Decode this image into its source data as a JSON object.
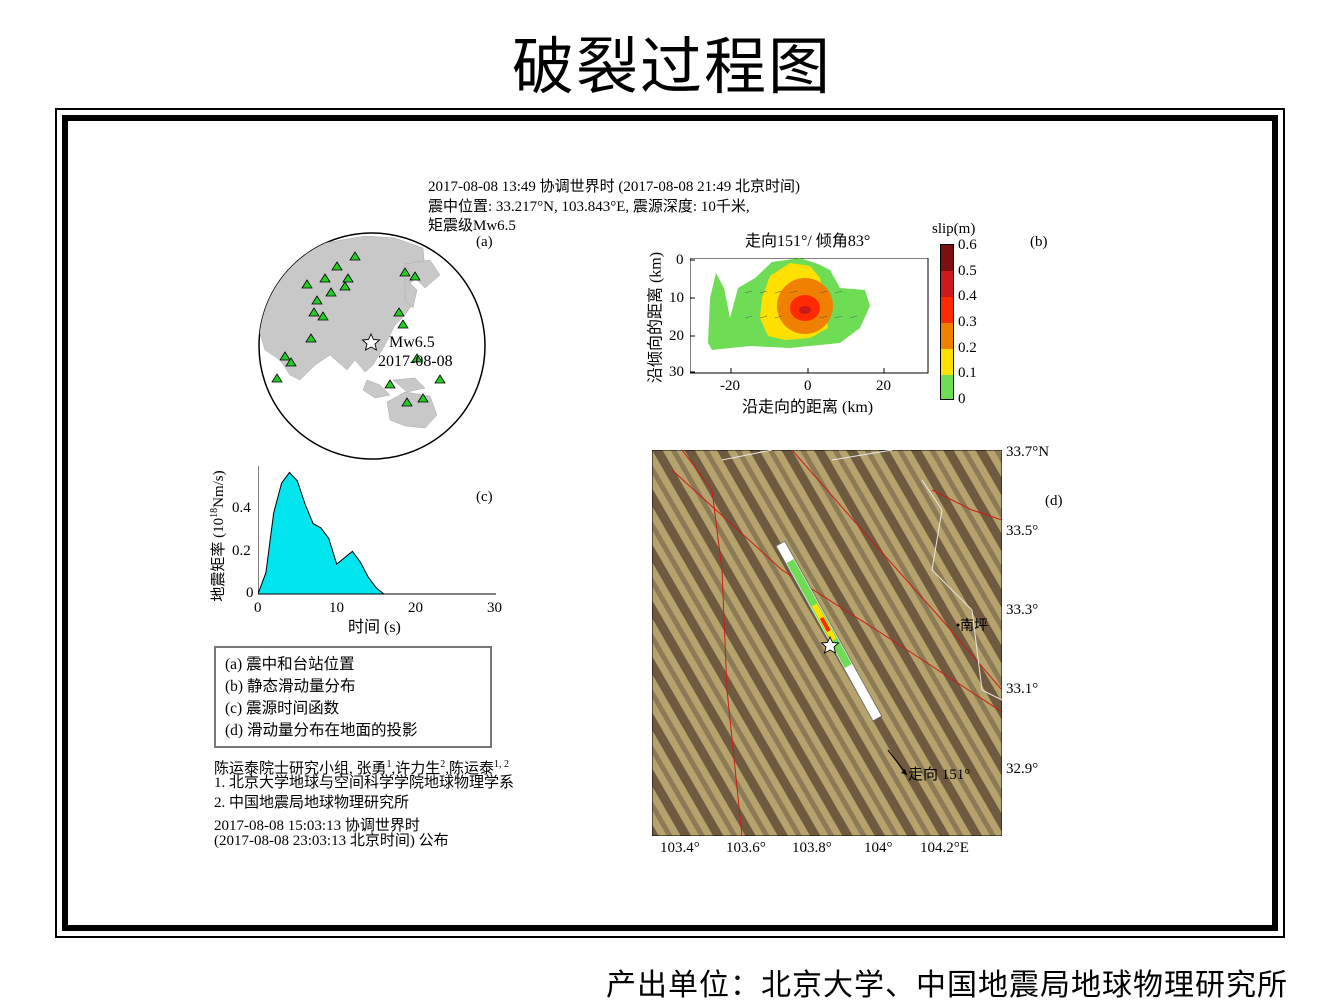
{
  "title": "破裂过程图",
  "header": {
    "line1": "2017-08-08 13:49 协调世界时 (2017-08-08 21:49 北京时间)",
    "line2": "震中位置: 33.217°N, 103.843°E, 震源深度: 10千米,",
    "line3": "矩震级Mw6.5"
  },
  "panel_a": {
    "label": "(a)",
    "event_mag": "Mw6.5",
    "event_date": "2017-08-08",
    "colors": {
      "ocean": "#ffffff",
      "land": "#c8c8c8",
      "station": "#22cc22"
    }
  },
  "panel_b": {
    "label": "(b)",
    "title": "走向151°/ 倾角83°",
    "xlabel": "沿走向的距离 (km)",
    "ylabel": "沿倾向的距离 (km)",
    "x_ticks": [
      "-20",
      "0",
      "20"
    ],
    "y_ticks": [
      "0",
      "10",
      "20",
      "30"
    ],
    "colorbar_title": "slip(m)",
    "colorbar_ticks": [
      "0.6",
      "0.5",
      "0.4",
      "0.3",
      "0.2",
      "0.1",
      "0"
    ],
    "colorbar_colors": [
      "#7a1010",
      "#cc1a1a",
      "#ff2a00",
      "#f08000",
      "#ffe000",
      "#6edd55",
      "#ffffff"
    ]
  },
  "panel_c": {
    "label": "(c)",
    "ylabel": "地震矩率 (10",
    "ylabel_sup": "18",
    "ylabel_end": "Nm/s)",
    "xlabel": "时间 (s)",
    "x_ticks": [
      "0",
      "10",
      "20",
      "30"
    ],
    "y_ticks": [
      "0.4",
      "0.2",
      "0"
    ],
    "fill_color": "#00e5ee"
  },
  "chart_data": {
    "type": "area",
    "title": "",
    "xlabel": "时间 (s)",
    "ylabel": "地震矩率 (10^18 Nm/s)",
    "xlim": [
      0,
      30
    ],
    "ylim": [
      0,
      0.6
    ],
    "x": [
      0,
      1,
      2,
      3,
      4,
      5,
      6,
      7,
      8,
      9,
      10,
      11,
      12,
      13,
      14,
      15,
      16
    ],
    "y": [
      0.0,
      0.1,
      0.38,
      0.52,
      0.57,
      0.53,
      0.42,
      0.33,
      0.31,
      0.26,
      0.14,
      0.17,
      0.2,
      0.15,
      0.08,
      0.03,
      0.0
    ]
  },
  "panel_d": {
    "label": "(d)",
    "lat_ticks": [
      "33.7°N",
      "33.5°",
      "33.3°",
      "33.1°",
      "32.9°"
    ],
    "lon_ticks": [
      "103.4°",
      "103.6°",
      "103.8°",
      "104°",
      "104.2°E"
    ],
    "place_name": "南坪",
    "strike_label": "走向 151°"
  },
  "legend": {
    "items": [
      "(a) 震中和台站位置",
      "(b) 静态滑动量分布",
      "(c) 震源时间函数",
      "(d) 滑动量分布在地面的投影"
    ]
  },
  "credits": {
    "authors": "陈运泰院士研究小组, 张勇",
    "sup1": "1",
    "author2": ",许力生",
    "sup2": "2",
    "author3": ",陈运泰",
    "sup3": "1, 2",
    "affil1": "1. 北京大学地球与空间科学学院地球物理学系",
    "affil2": "2. 中国地震局地球物理研究所",
    "time_utc": "2017-08-08 15:03:13 协调世界时",
    "time_bj": "(2017-08-08 23:03:13 北京时间) 公布"
  },
  "footer": "产出单位：北京大学、中国地震局地球物理研究所"
}
